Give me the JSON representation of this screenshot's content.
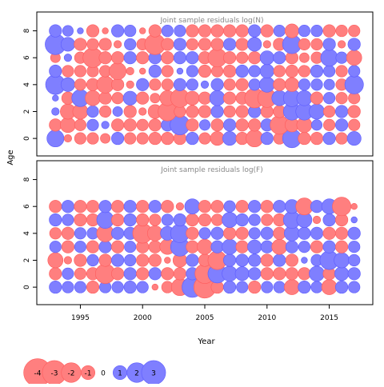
{
  "chart_data": {
    "type": "scatter",
    "encoding": "bubble area proportional to absolute residual; red = negative, blue = positive",
    "ylabel": "Age",
    "xlabel": "Year",
    "x_ticks": [
      1995,
      2000,
      2005,
      2010,
      2015
    ],
    "x_range": [
      1991.5,
      2018.5
    ],
    "years": [
      1993,
      1994,
      1995,
      1996,
      1997,
      1998,
      1999,
      2000,
      2001,
      2002,
      2003,
      2004,
      2005,
      2006,
      2007,
      2008,
      2009,
      2010,
      2011,
      2012,
      2013,
      2014,
      2015,
      2016,
      2017
    ],
    "colors": {
      "negative_fill": "#ff7f7f",
      "negative_stroke": "#ff5c5c",
      "positive_fill": "#7f7fff",
      "positive_stroke": "#5c5cff",
      "axis": "#000000",
      "panel_title": "#888888"
    },
    "panels": [
      {
        "title": "Joint sample residuals log(N)",
        "y_ticks": [
          0,
          2,
          4,
          6,
          8
        ],
        "y_range": [
          -1.3,
          9.4
        ],
        "ages": [
          0,
          1,
          2,
          3,
          4,
          5,
          6,
          7,
          8
        ],
        "residuals": [
          [
            1.5,
            -0.3,
            -0.7,
            -0.7,
            -0.5,
            0.8,
            -0.7,
            -0.7,
            -0.8,
            -0.8,
            -0.8,
            0.8,
            -0.7,
            -1.0,
            1.0,
            -0.8,
            -1.5,
            0.8,
            -0.7,
            1.8,
            -0.8,
            -0.8,
            0.8,
            -0.7,
            1.0
          ],
          [
            -0.8,
            -1.2,
            -0.7,
            0.7,
            0.3,
            -0.8,
            -0.8,
            -0.7,
            -0.8,
            0.8,
            2.0,
            -0.8,
            0.6,
            -0.8,
            0.8,
            -0.8,
            -0.8,
            0.8,
            -1.8,
            -1.0,
            -1.2,
            0.6,
            -0.7,
            0.8,
            -0.7
          ],
          [
            0.3,
            -1.2,
            -1.2,
            0.7,
            -0.7,
            0.5,
            -0.8,
            -0.3,
            -1.0,
            -1.8,
            -0.7,
            -0.8,
            -0.8,
            0.8,
            -0.7,
            -0.8,
            0.8,
            -0.8,
            -0.8,
            1.5,
            1.5,
            1.2,
            -0.7,
            0.8,
            -0.8
          ],
          [
            0.2,
            -0.8,
            1.5,
            -1.2,
            -0.8,
            -0.7,
            1.0,
            -0.8,
            -0.5,
            -1.2,
            -1.8,
            -1.0,
            -0.8,
            1.2,
            -0.8,
            -0.8,
            -2.0,
            -1.8,
            1.2,
            1.5,
            1.2,
            -0.8,
            0.7,
            -0.7,
            -0.7
          ],
          [
            2.0,
            1.0,
            -0.7,
            -0.8,
            -1.5,
            -0.8,
            -0.3,
            0.8,
            -0.7,
            -0.7,
            0.8,
            0.7,
            0.3,
            0.8,
            -0.7,
            -0.8,
            0.7,
            1.2,
            -0.8,
            -1.0,
            0.7,
            0.7,
            0.6,
            -0.7,
            1.8
          ],
          [
            0.8,
            -0.7,
            -0.7,
            -0.7,
            -0.7,
            -1.5,
            -0.3,
            -0.2,
            0.8,
            -0.7,
            0.2,
            0.7,
            -0.8,
            -0.7,
            -0.8,
            0.8,
            0.7,
            1.0,
            -0.7,
            -0.8,
            -0.7,
            0.8,
            0.7,
            -0.7,
            0.7
          ],
          [
            -0.5,
            0.3,
            -0.7,
            -2.0,
            -0.8,
            -0.8,
            0.8,
            -0.8,
            0.8,
            -0.8,
            0.8,
            0.8,
            -0.8,
            -1.8,
            -0.8,
            -0.7,
            -0.8,
            1.0,
            0.8,
            -0.8,
            -0.5,
            -0.7,
            1.5,
            0.7,
            -1.2
          ],
          [
            2.2,
            1.0,
            -0.8,
            -0.7,
            -0.8,
            -0.3,
            0.7,
            -0.7,
            -2.2,
            -0.8,
            0.8,
            -0.7,
            -0.8,
            -0.8,
            0.8,
            -0.8,
            1.0,
            -0.3,
            -0.8,
            1.8,
            -0.7,
            -0.7,
            0.8,
            -0.3,
            0.8
          ],
          [
            0.8,
            0.6,
            0.2,
            -0.8,
            -0.2,
            0.8,
            0.7,
            -0.2,
            -0.8,
            0.7,
            0.7,
            -0.8,
            -0.8,
            -0.8,
            -0.8,
            -0.8,
            0.8,
            -0.8,
            0.7,
            -1.0,
            0.7,
            0.7,
            -0.8,
            -0.7,
            -0.7
          ]
        ]
      },
      {
        "title": "Joint sample residuals log(F)",
        "y_ticks": [
          0,
          2,
          4,
          6,
          8
        ],
        "y_range": [
          -1.3,
          9.4
        ],
        "ages": [
          0,
          1,
          2,
          3,
          4,
          5,
          6
        ],
        "residuals": [
          [
            0.8,
            0.7,
            0.7,
            -0.8,
            0.7,
            0.7,
            0.8,
            0.7,
            -0.2,
            -0.7,
            -1.5,
            2.2,
            -2.5,
            -0.8,
            0.8,
            0.7,
            -0.8,
            0.7,
            0.7,
            -1.2,
            0.8,
            0.7,
            -1.2,
            0.8,
            0.7
          ],
          [
            -0.8,
            0.7,
            -0.7,
            -0.8,
            -2.0,
            -0.8,
            0.8,
            -0.8,
            0.8,
            -0.8,
            -0.8,
            0.8,
            -2.0,
            1.8,
            1.2,
            1.0,
            0.8,
            -0.8,
            -0.8,
            -0.8,
            -0.8,
            1.2,
            -0.8,
            1.0,
            0.8
          ],
          [
            -1.2,
            -0.3,
            -0.8,
            0.7,
            -0.8,
            0.8,
            0.7,
            -0.8,
            -0.8,
            -0.2,
            -1.0,
            0.8,
            -0.8,
            -1.8,
            0.8,
            0.8,
            0.8,
            -0.8,
            0.8,
            -0.8,
            0.2,
            0.7,
            1.8,
            1.2,
            0.7
          ],
          [
            0.7,
            -0.8,
            0.7,
            -0.8,
            0.8,
            -0.8,
            0.7,
            -0.8,
            -0.8,
            -1.2,
            1.8,
            -0.8,
            -1.2,
            0.8,
            1.2,
            -0.8,
            1.0,
            0.8,
            -1.2,
            0.8,
            0.7,
            -0.8,
            0.8,
            -0.8,
            0.7
          ],
          [
            -0.7,
            -0.8,
            0.7,
            0.7,
            -1.5,
            0.8,
            0.8,
            -2.0,
            -1.2,
            1.0,
            1.8,
            -0.8,
            0.7,
            0.8,
            -0.8,
            -0.8,
            0.7,
            0.8,
            -0.8,
            1.2,
            0.8,
            0.8,
            -0.8,
            -0.8,
            0.8
          ],
          [
            0.8,
            0.7,
            -0.8,
            -0.8,
            1.5,
            -0.8,
            0.8,
            -0.8,
            -0.7,
            0.7,
            0.8,
            -0.8,
            -0.8,
            -0.7,
            1.2,
            0.8,
            0.7,
            -0.7,
            -0.8,
            1.5,
            1.2,
            -0.3,
            0.8,
            -0.8,
            0.2
          ],
          [
            -0.8,
            0.8,
            -0.8,
            -0.8,
            0.8,
            -0.8,
            0.8,
            -0.8,
            0.8,
            -0.8,
            -0.3,
            1.2,
            -0.8,
            -0.8,
            0.7,
            -0.8,
            0.8,
            -0.8,
            0.8,
            1.0,
            -1.5,
            0.8,
            1.2,
            -1.8,
            -0.2
          ]
        ]
      }
    ],
    "legend": {
      "values": [
        -4,
        -3,
        -2,
        -1,
        0,
        1,
        2,
        3
      ],
      "labels": [
        "-4",
        "-3",
        "-2",
        "-1",
        "0",
        "1",
        "2",
        "3"
      ],
      "placement": "bottom-left"
    }
  }
}
